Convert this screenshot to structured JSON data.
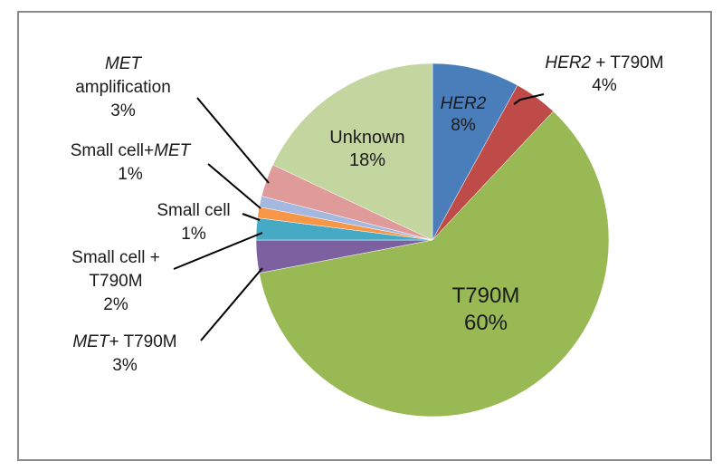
{
  "chart_data": {
    "type": "pie",
    "title": "",
    "slices": [
      {
        "name": "HER2",
        "italic_name": true,
        "value": 8,
        "value_label": "8%",
        "color": "#4a7ebb"
      },
      {
        "name": "HER2 + T790M",
        "value": 4,
        "value_label": "4%",
        "color": "#be4b48"
      },
      {
        "name": "T790M",
        "value": 60,
        "value_label": "60%",
        "color": "#98b954"
      },
      {
        "name": "MET+ T790M",
        "value": 3,
        "value_label": "3%",
        "color": "#7d60a0"
      },
      {
        "name": "Small cell + T790M",
        "value": 2,
        "value_label": "2%",
        "color": "#46aac5"
      },
      {
        "name": "Small cell",
        "value": 1,
        "value_label": "1%",
        "color": "#f79646"
      },
      {
        "name": "Small cell+MET",
        "value": 1,
        "value_label": "1%",
        "color": "#a5b8e0"
      },
      {
        "name": "MET amplification",
        "value": 3,
        "value_label": "3%",
        "color": "#df9a9a"
      },
      {
        "name": "Unknown",
        "value": 18,
        "value_label": "18%",
        "color": "#c3d6a0"
      }
    ]
  },
  "labels": {
    "her2_name": "HER2",
    "her2_t790m_gene": "HER2",
    "her2_t790m_rest": " + T790M",
    "t790m_name": "T790M",
    "met_t790m_gene": "MET",
    "met_t790m_rest": "+ T790M",
    "smallcell_t790m_line1": "Small cell +",
    "smallcell_t790m_line2": "T790M",
    "smallcell_name": "Small cell",
    "smallcell_met_prefix": "Small cell+",
    "smallcell_met_gene": "MET",
    "met_amp_gene": "MET",
    "met_amp_line2": "amplification",
    "unknown_name": "Unknown"
  }
}
